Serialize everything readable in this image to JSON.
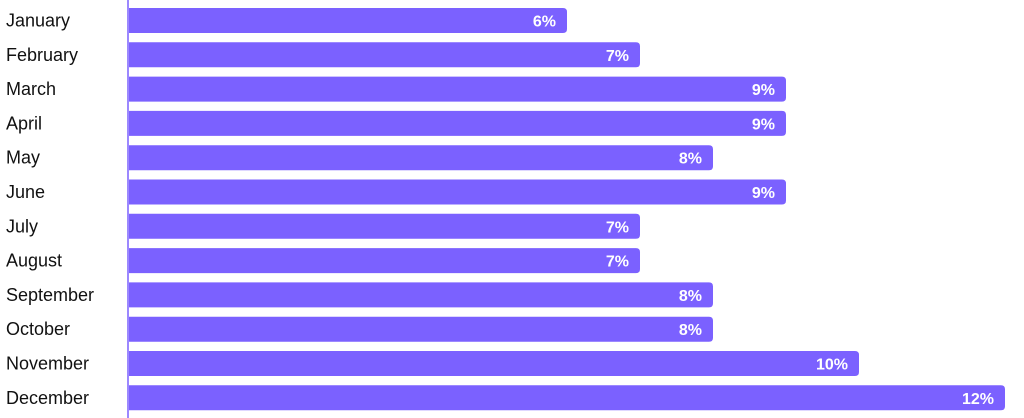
{
  "chart_data": {
    "type": "bar",
    "orientation": "horizontal",
    "categories": [
      "January",
      "February",
      "March",
      "April",
      "May",
      "June",
      "July",
      "August",
      "September",
      "October",
      "November",
      "December"
    ],
    "values": [
      6,
      7,
      9,
      9,
      8,
      9,
      7,
      7,
      8,
      8,
      10,
      12
    ],
    "value_labels": [
      "6%",
      "7%",
      "9%",
      "9%",
      "8%",
      "9%",
      "7%",
      "7%",
      "8%",
      "8%",
      "10%",
      "12%"
    ],
    "title": "",
    "xlabel": "",
    "ylabel": "",
    "xlim": [
      0,
      12
    ],
    "grid": false,
    "bar_color": "#7B61FF",
    "value_label_color": "#ffffff",
    "axis_color": "#7B61FF"
  }
}
